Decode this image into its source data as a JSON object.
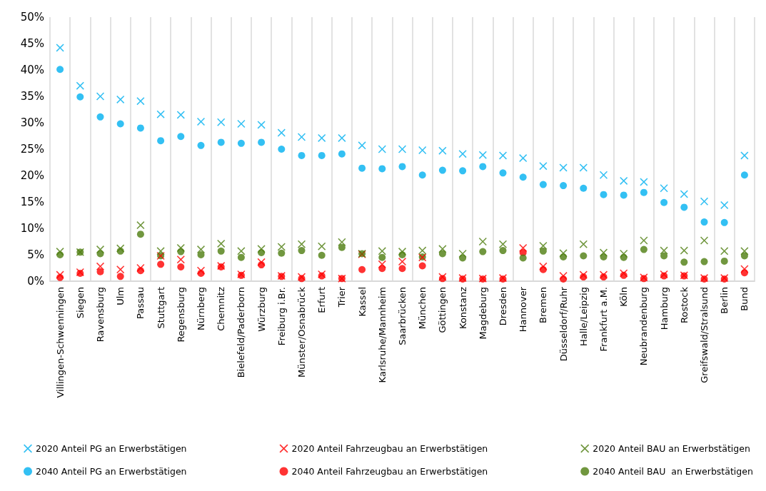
{
  "chart_data": {
    "type": "scatter",
    "categories": [
      "Villingen-Schwenningen",
      "Siegen",
      "Ravensburg",
      "Ulm",
      "Passau",
      "Stuttgart",
      "Regensburg",
      "Nürnberg",
      "Chemnitz",
      "Bielefeld/Paderborn",
      "Würzburg",
      "Freiburg i.Br.",
      "Münster/Osnabrück",
      "Erfurt",
      "Trier",
      "Kassel",
      "Karlsruhe/Mannheim",
      "Saarbrücken",
      "München",
      "Göttingen",
      "Konstanz",
      "Magdeburg",
      "Dresden",
      "Hannover",
      "Bremen",
      "Düsseldorf/Ruhr",
      "Halle/Leipzig",
      "Frankfurt a.M.",
      "Köln",
      "Neubrandenburg",
      "Hamburg",
      "Rostock",
      "Greifswald/Stralsund",
      "Berlin",
      "Bund"
    ],
    "series": [
      {
        "name": "2020 Anteil PG an Erwerbstätigen",
        "color": "#00b0f0",
        "marker": "cross",
        "values": [
          44.2,
          37.0,
          35.0,
          34.4,
          34.1,
          31.6,
          31.5,
          30.2,
          30.1,
          29.8,
          29.6,
          28.1,
          27.3,
          27.1,
          27.1,
          25.7,
          25.0,
          25.0,
          24.8,
          24.7,
          24.1,
          23.9,
          23.8,
          23.3,
          21.8,
          21.5,
          21.5,
          20.1,
          19.0,
          18.8,
          17.6,
          16.5,
          15.1,
          14.4,
          23.8
        ]
      },
      {
        "name": "2020 Anteil Fahrzeugbau an Erwerbstätigen",
        "color": "#ff0000",
        "marker": "cross",
        "values": [
          1.2,
          1.7,
          2.8,
          2.2,
          2.5,
          4.8,
          4.1,
          2.0,
          2.9,
          1.3,
          3.6,
          1.0,
          0.8,
          1.3,
          0.5,
          5.1,
          3.2,
          3.7,
          4.5,
          0.8,
          0.6,
          0.5,
          0.6,
          6.3,
          2.8,
          1.0,
          1.2,
          1.2,
          1.5,
          0.7,
          1.3,
          1.1,
          0.6,
          0.6,
          2.3
        ]
      },
      {
        "name": "2020 Anteil BAU an Erwerbstätigen",
        "color": "#4e7d0f",
        "marker": "cross",
        "values": [
          5.6,
          5.5,
          6.0,
          6.2,
          10.6,
          5.7,
          6.3,
          6.0,
          7.1,
          5.7,
          6.1,
          6.5,
          7.0,
          6.6,
          7.4,
          5.2,
          5.7,
          5.6,
          5.8,
          6.1,
          5.2,
          7.5,
          7.0,
          null,
          6.7,
          5.3,
          7.0,
          5.4,
          5.2,
          7.7,
          5.8,
          5.8,
          7.7,
          5.7,
          5.7
        ]
      },
      {
        "name": "2040 Anteil PG an Erwerbstätigen",
        "color": "#00b0f0",
        "marker": "circle",
        "values": [
          40.1,
          34.9,
          31.1,
          29.8,
          29.0,
          26.6,
          27.4,
          25.7,
          26.3,
          26.1,
          26.3,
          25.0,
          23.8,
          23.8,
          24.1,
          21.4,
          21.3,
          21.7,
          20.1,
          21.0,
          20.9,
          21.7,
          20.5,
          19.7,
          18.3,
          18.1,
          17.6,
          16.4,
          16.3,
          16.8,
          14.9,
          14.0,
          11.2,
          11.1,
          20.1
        ]
      },
      {
        "name": "2040 Anteil Fahrzeugbau an Erwerbstätigen",
        "color": "#ff0000",
        "marker": "circle",
        "values": [
          0.7,
          1.5,
          1.8,
          0.9,
          2.0,
          3.2,
          2.7,
          1.5,
          2.7,
          1.1,
          3.1,
          0.9,
          0.5,
          1.0,
          0.5,
          2.2,
          2.4,
          2.4,
          2.9,
          0.5,
          0.4,
          0.4,
          0.4,
          5.4,
          2.2,
          0.4,
          0.8,
          0.8,
          1.1,
          0.5,
          1.0,
          1.0,
          0.4,
          0.4,
          1.6
        ]
      },
      {
        "name": "2040 Anteil BAU  an Erwerbstätigen",
        "color": "#4e7d0f",
        "marker": "circle",
        "values": [
          5.0,
          5.5,
          5.2,
          5.7,
          8.9,
          4.8,
          5.6,
          5.0,
          5.7,
          4.5,
          5.4,
          5.3,
          5.8,
          4.9,
          6.4,
          5.2,
          4.5,
          5.0,
          4.6,
          5.2,
          4.4,
          5.6,
          5.8,
          4.4,
          5.7,
          4.6,
          4.8,
          4.6,
          4.5,
          6.0,
          4.8,
          3.6,
          3.7,
          3.8,
          4.8
        ]
      }
    ],
    "ylim": [
      0,
      50
    ],
    "yticks": [
      {
        "value": 0,
        "label": "0%"
      },
      {
        "value": 5,
        "label": "5%"
      },
      {
        "value": 10,
        "label": "10%"
      },
      {
        "value": 15,
        "label": "15%"
      },
      {
        "value": 20,
        "label": "20%"
      },
      {
        "value": 25,
        "label": "25%"
      },
      {
        "value": 30,
        "label": "30%"
      },
      {
        "value": 35,
        "label": "35%"
      },
      {
        "value": 40,
        "label": "40%"
      },
      {
        "value": 45,
        "label": "45%"
      },
      {
        "value": 50,
        "label": "50%"
      }
    ],
    "grid": "x",
    "legend": "bottom"
  }
}
